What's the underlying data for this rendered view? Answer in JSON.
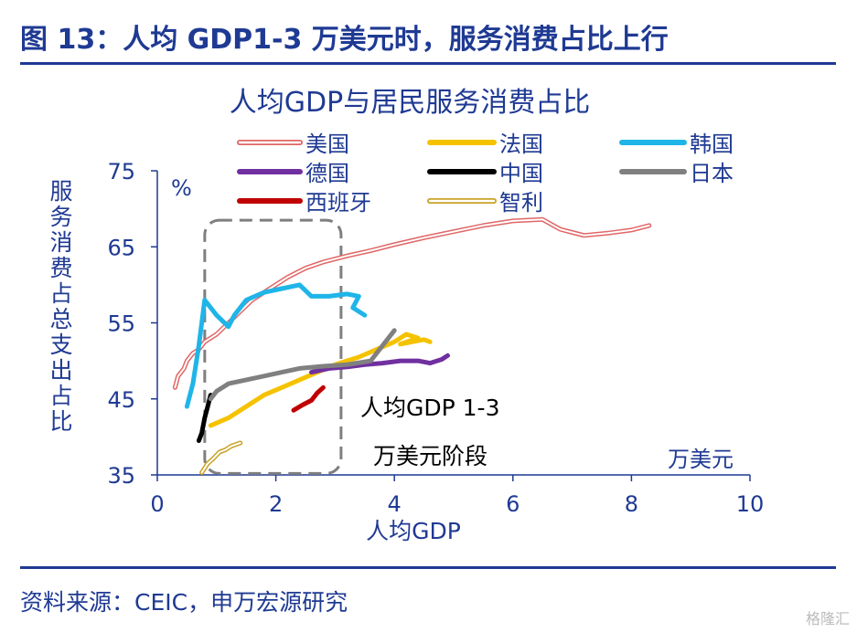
{
  "figure_title": "图 13：人均 GDP1-3 万美元时，服务消费占比上行",
  "source": "资料来源：CEIC，申万宏源研究",
  "watermark": "格隆汇",
  "chart_data": {
    "type": "line",
    "title": "人均GDP与居民服务消费占比",
    "xlabel": "人均GDP",
    "ylabel": "服务消费占总支出占比",
    "x_unit": "万美元",
    "y_unit": "%",
    "xlim": [
      0,
      10
    ],
    "ylim": [
      35,
      75
    ],
    "x_ticks": [
      "0",
      "2",
      "4",
      "6",
      "8",
      "10"
    ],
    "y_ticks": [
      "35",
      "45",
      "55",
      "65",
      "75"
    ],
    "grid": false,
    "legend": "top",
    "annotation": {
      "line1": "人均GDP 1-3",
      "line2": "万美元阶段",
      "box_x": [
        0.8,
        3.1
      ],
      "box_y": [
        35.2,
        68.5
      ]
    },
    "series": [
      {
        "name": "美国",
        "color": "#e06666",
        "style": "double",
        "points": [
          [
            0.3,
            46.5
          ],
          [
            0.35,
            48
          ],
          [
            0.45,
            49
          ],
          [
            0.5,
            50
          ],
          [
            0.6,
            51
          ],
          [
            0.7,
            51.5
          ],
          [
            0.8,
            52.5
          ],
          [
            1.0,
            53.5
          ],
          [
            1.2,
            55
          ],
          [
            1.4,
            56.5
          ],
          [
            1.6,
            58
          ],
          [
            1.9,
            59.5
          ],
          [
            2.2,
            61
          ],
          [
            2.5,
            62.2
          ],
          [
            2.8,
            63
          ],
          [
            3.2,
            63.8
          ],
          [
            3.6,
            64.5
          ],
          [
            4.0,
            65.3
          ],
          [
            4.5,
            66.2
          ],
          [
            5.0,
            67
          ],
          [
            5.5,
            67.8
          ],
          [
            6.0,
            68.4
          ],
          [
            6.5,
            68.6
          ],
          [
            6.8,
            67.3
          ],
          [
            7.2,
            66.5
          ],
          [
            7.6,
            66.8
          ],
          [
            8.0,
            67.2
          ],
          [
            8.3,
            67.8
          ]
        ]
      },
      {
        "name": "法国",
        "color": "#f5c200",
        "style": "solid",
        "points": [
          [
            0.9,
            41.5
          ],
          [
            1.2,
            42.5
          ],
          [
            1.5,
            44
          ],
          [
            1.8,
            45.5
          ],
          [
            2.1,
            46.5
          ],
          [
            2.4,
            47.5
          ],
          [
            2.7,
            48.5
          ],
          [
            3.0,
            49.5
          ],
          [
            3.4,
            50.5
          ],
          [
            3.7,
            51.5
          ],
          [
            4.0,
            52.5
          ],
          [
            4.2,
            53.5
          ],
          [
            4.4,
            53
          ],
          [
            4.1,
            52.2
          ],
          [
            4.5,
            52.8
          ],
          [
            4.6,
            52.5
          ]
        ]
      },
      {
        "name": "韩国",
        "color": "#1fb5e8",
        "style": "solid",
        "points": [
          [
            0.5,
            44
          ],
          [
            0.6,
            47
          ],
          [
            0.7,
            52
          ],
          [
            0.75,
            55
          ],
          [
            0.8,
            58
          ],
          [
            1.0,
            56
          ],
          [
            1.2,
            54.5
          ],
          [
            1.3,
            56
          ],
          [
            1.5,
            58
          ],
          [
            1.8,
            59
          ],
          [
            2.1,
            59.5
          ],
          [
            2.4,
            60
          ],
          [
            2.6,
            58.5
          ],
          [
            2.9,
            58.5
          ],
          [
            3.2,
            58.8
          ],
          [
            3.4,
            58.5
          ],
          [
            3.3,
            57
          ],
          [
            3.5,
            56
          ]
        ]
      },
      {
        "name": "德国",
        "color": "#7030a0",
        "style": "solid",
        "points": [
          [
            2.6,
            48.5
          ],
          [
            2.9,
            49
          ],
          [
            3.2,
            49.2
          ],
          [
            3.5,
            49.5
          ],
          [
            3.8,
            49.7
          ],
          [
            4.1,
            50
          ],
          [
            4.4,
            50
          ],
          [
            4.6,
            49.7
          ],
          [
            4.8,
            50.2
          ],
          [
            4.9,
            50.7
          ]
        ]
      },
      {
        "name": "中国",
        "color": "#000000",
        "style": "solid",
        "points": [
          [
            0.7,
            39.5
          ],
          [
            0.75,
            40.5
          ],
          [
            0.8,
            42.5
          ],
          [
            0.85,
            44
          ],
          [
            0.9,
            45.5
          ]
        ]
      },
      {
        "name": "日本",
        "color": "#808080",
        "style": "solid",
        "points": [
          [
            0.9,
            45
          ],
          [
            1.0,
            46
          ],
          [
            1.2,
            47
          ],
          [
            1.5,
            47.5
          ],
          [
            1.8,
            48
          ],
          [
            2.1,
            48.5
          ],
          [
            2.4,
            49
          ],
          [
            2.8,
            49.3
          ],
          [
            3.2,
            49.5
          ],
          [
            3.6,
            50
          ],
          [
            3.8,
            52
          ],
          [
            4.0,
            54
          ]
        ]
      },
      {
        "name": "西班牙",
        "color": "#c00000",
        "style": "solid",
        "points": [
          [
            2.3,
            43.5
          ],
          [
            2.45,
            44.2
          ],
          [
            2.6,
            44.8
          ],
          [
            2.7,
            45.8
          ],
          [
            2.8,
            46.5
          ]
        ]
      },
      {
        "name": "智利",
        "color": "#c9a227",
        "style": "double",
        "points": [
          [
            0.75,
            35.3
          ],
          [
            0.85,
            36.5
          ],
          [
            0.95,
            37.2
          ],
          [
            1.05,
            38
          ],
          [
            1.15,
            38.3
          ],
          [
            1.25,
            38.8
          ],
          [
            1.4,
            39.2
          ]
        ]
      }
    ]
  }
}
